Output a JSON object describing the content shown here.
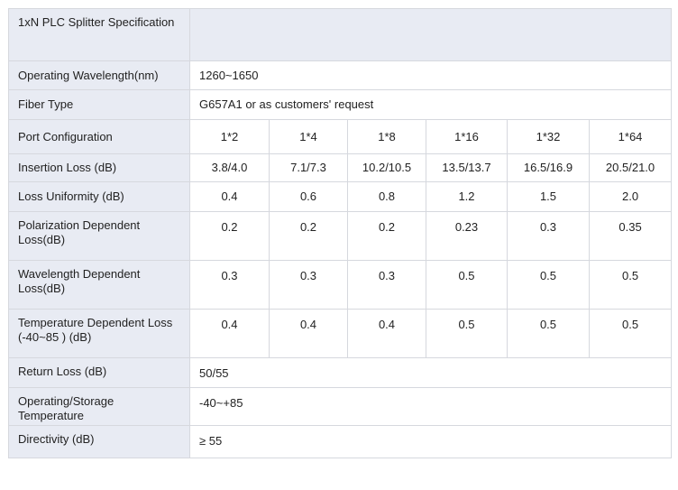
{
  "table": {
    "title": "1xN PLC Splitter Specification",
    "rows": {
      "operating_wavelength": {
        "label": "Operating Wavelength(nm)",
        "value": "1260~1650"
      },
      "fiber_type": {
        "label": "Fiber Type",
        "value": "G657A1 or as customers' request"
      },
      "port_configuration": {
        "label": "Port Configuration",
        "values": [
          "1*2",
          "1*4",
          "1*8",
          "1*16",
          "1*32",
          "1*64"
        ]
      },
      "insertion_loss": {
        "label": "Insertion Loss (dB)",
        "values": [
          "3.8/4.0",
          "7.1/7.3",
          "10.2/10.5",
          "13.5/13.7",
          "16.5/16.9",
          "20.5/21.0"
        ]
      },
      "loss_uniformity": {
        "label": "Loss Uniformity (dB)",
        "values": [
          "0.4",
          "0.6",
          "0.8",
          "1.2",
          "1.5",
          "2.0"
        ]
      },
      "pdl": {
        "label": "Polarization Dependent Loss(dB)",
        "values": [
          "0.2",
          "0.2",
          "0.2",
          "0.23",
          "0.3",
          "0.35"
        ]
      },
      "wdl": {
        "label": "Wavelength Dependent Loss(dB)",
        "values": [
          "0.3",
          "0.3",
          "0.3",
          "0.5",
          "0.5",
          "0.5"
        ]
      },
      "tdl": {
        "label": "Temperature Dependent Loss (-40~85 ) (dB)",
        "values": [
          "0.4",
          "0.4",
          "0.4",
          "0.5",
          "0.5",
          "0.5"
        ]
      },
      "return_loss": {
        "label": "Return Loss (dB)",
        "value": "50/55"
      },
      "operating_storage_temp": {
        "label": "Operating/Storage Temperature",
        "value": "-40~+85"
      },
      "directivity": {
        "label": "Directivity (dB)",
        "value": "≥ 55"
      }
    }
  }
}
